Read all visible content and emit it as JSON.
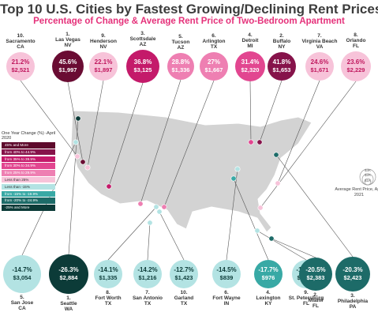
{
  "header": {
    "title": "Top 10 U.S. Cities by Fastest Growing/Declining Rent Prices",
    "subtitle": "Percentage of Change & Average Rent Price of Two-Bedroom Apartment"
  },
  "legend": {
    "title": "One Year Change (%) -April 2020",
    "items": [
      {
        "label": "45% and More",
        "color": "#5e0a2c"
      },
      {
        "label": "from 40% to 44.9%",
        "color": "#86134a"
      },
      {
        "label": "from 35% to 39.9%",
        "color": "#c41a6a"
      },
      {
        "label": "from 30% to 34.9%",
        "color": "#e24690"
      },
      {
        "label": "from 25% to 29.9%",
        "color": "#ee7fb2"
      },
      {
        "label": "Less than 25%",
        "color": "#f7c3d9"
      },
      {
        "label": "Less than -15%",
        "color": "#b3e3e3"
      },
      {
        "label": "from -15% to -19.9%",
        "color": "#38a9a5"
      },
      {
        "label": "from -20% to -24.9%",
        "color": "#1d6b68"
      },
      {
        "label": "-25% and More",
        "color": "#0c3b38"
      }
    ]
  },
  "scale": {
    "ticks": [
      "$3K",
      "$2K",
      "$1K"
    ],
    "label": "Average Rent Price, April 2021"
  },
  "chart_data": {
    "type": "bubble-map",
    "title": "Top 10 U.S. Cities by Fastest Growing/Declining Rent Prices",
    "subtitle": "Percentage of Change & Average Rent Price of Two-Bedroom Apartment",
    "growing": [
      {
        "rank": "10.",
        "city": "Sacramento",
        "state": "CA",
        "change": "21.2%",
        "rent": "$2,521",
        "color": "#f7c3d9",
        "text_color": "#c0185e"
      },
      {
        "rank": "1.",
        "city": "Las Vegas",
        "state": "NV",
        "change": "45.6%",
        "rent": "$1,997",
        "color": "#6a0c33",
        "text_color": "#ffffff"
      },
      {
        "rank": "9.",
        "city": "Henderson",
        "state": "NV",
        "change": "22.1%",
        "rent": "$1,897",
        "color": "#f7c3d9",
        "text_color": "#c0185e"
      },
      {
        "rank": "3.",
        "city": "Scottsdale",
        "state": "AZ",
        "change": "36.8%",
        "rent": "$3,125",
        "color": "#c41a6a",
        "text_color": "#ffffff"
      },
      {
        "rank": "5.",
        "city": "Tucson",
        "state": "AZ",
        "change": "28.8%",
        "rent": "$1,336",
        "color": "#ee7fb2",
        "text_color": "#ffffff"
      },
      {
        "rank": "6.",
        "city": "Arlington",
        "state": "TX",
        "change": "27%",
        "rent": "$1,667",
        "color": "#ee7fb2",
        "text_color": "#ffffff"
      },
      {
        "rank": "4.",
        "city": "Detroit",
        "state": "MI",
        "change": "31.4%",
        "rent": "$2,320",
        "color": "#e24690",
        "text_color": "#ffffff"
      },
      {
        "rank": "2.",
        "city": "Buffalo",
        "state": "NY",
        "change": "41.8%",
        "rent": "$1,653",
        "color": "#86134a",
        "text_color": "#ffffff"
      },
      {
        "rank": "7.",
        "city": "Virginia Beach",
        "state": "VA",
        "change": "24.6%",
        "rent": "$1,671",
        "color": "#f7c3d9",
        "text_color": "#c0185e"
      },
      {
        "rank": "8.",
        "city": "Orlando",
        "state": "FL",
        "change": "23.6%",
        "rent": "$2,229",
        "color": "#f7c3d9",
        "text_color": "#c0185e"
      }
    ],
    "declining": [
      {
        "rank": "5.",
        "city": "San Jose",
        "state": "CA",
        "change": "-14.7%",
        "rent": "$3,054",
        "color": "#b3e3e3",
        "text_color": "#0c3b38"
      },
      {
        "rank": "1.",
        "city": "Seattle",
        "state": "WA",
        "change": "-26.3%",
        "rent": "$2,884",
        "color": "#0c3b38",
        "text_color": "#ffffff"
      },
      {
        "rank": "8.",
        "city": "Fort Worth",
        "state": "TX",
        "change": "-14.1%",
        "rent": "$1,335",
        "color": "#b3e3e3",
        "text_color": "#0c3b38"
      },
      {
        "rank": "7.",
        "city": "San Antonio",
        "state": "TX",
        "change": "-14.2%",
        "rent": "$1,216",
        "color": "#b3e3e3",
        "text_color": "#0c3b38"
      },
      {
        "rank": "10.",
        "city": "Garland",
        "state": "TX",
        "change": "-12.7%",
        "rent": "$1,423",
        "color": "#b3e3e3",
        "text_color": "#0c3b38"
      },
      {
        "rank": "6.",
        "city": "Fort Wayne",
        "state": "IN",
        "change": "-14.5%",
        "rent": "$839",
        "color": "#b3e3e3",
        "text_color": "#0c3b38"
      },
      {
        "rank": "4.",
        "city": "Lexington",
        "state": "KY",
        "change": "-17.7%",
        "rent": "$976",
        "color": "#38a9a5",
        "text_color": "#ffffff"
      },
      {
        "rank": "9.",
        "city": "St. Petersburg",
        "state": "FL",
        "change": "-12.8%",
        "rent": "$1,474",
        "color": "#b3e3e3",
        "text_color": "#0c3b38"
      },
      {
        "rank": "2.",
        "city": "Miami",
        "state": "FL",
        "change": "-20.5%",
        "rent": "$2,383",
        "color": "#1d6b68",
        "text_color": "#ffffff"
      },
      {
        "rank": "3.",
        "city": "Philadelphia",
        "state": "PA",
        "change": "-20.3%",
        "rent": "$2,423",
        "color": "#1d6b68",
        "text_color": "#ffffff"
      }
    ]
  }
}
